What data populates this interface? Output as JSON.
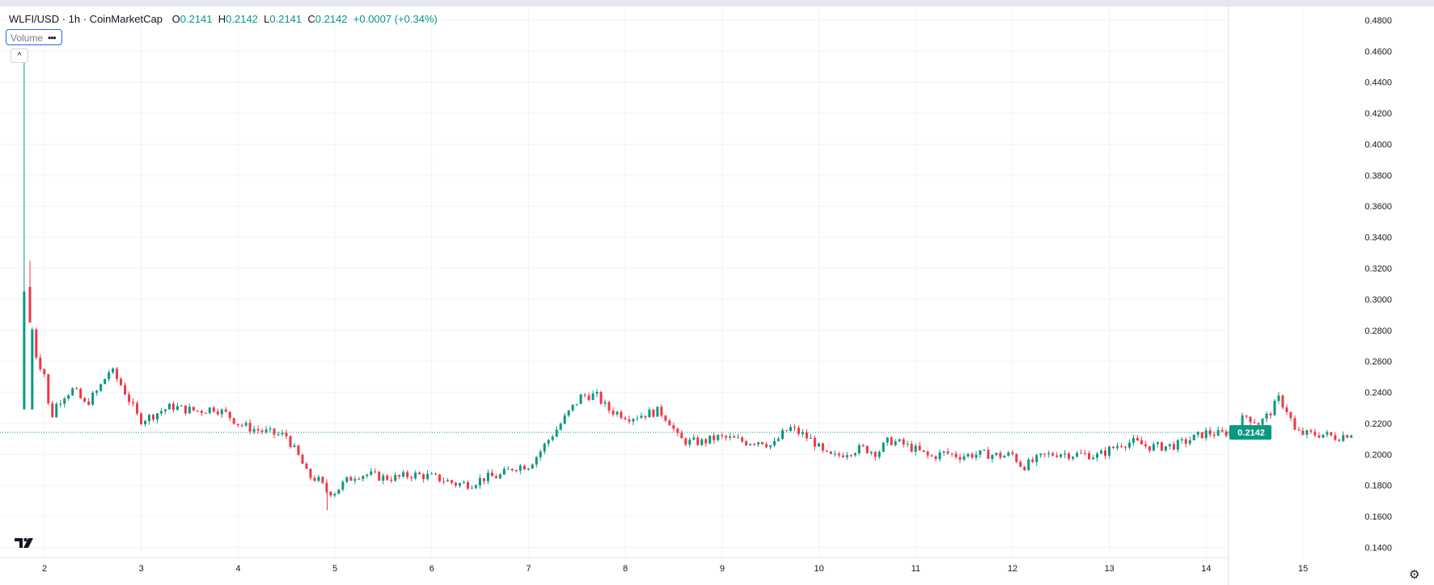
{
  "legend": {
    "symbol": "WLFI/USD · 1h · CoinMarketCap",
    "open_label": "O",
    "open": "0.2141",
    "high_label": "H",
    "high": "0.2142",
    "low_label": "L",
    "low": "0.2141",
    "close_label": "C",
    "close": "0.2142",
    "change": "+0.0007 (+0.34%)"
  },
  "volume_pill": {
    "label": "Volume",
    "more_icon": "ellipsis-icon"
  },
  "collapse_icon": "chevron-up-icon",
  "logo_icon": "tradingview-logo",
  "settings_icon": "gear-icon",
  "colors": {
    "up": "#089981",
    "down": "#f23645",
    "grid": "#f0f3fa",
    "axis_text": "#131722",
    "price_tag": "#089981"
  },
  "chart_data": {
    "type": "candlestick",
    "title": "WLFI/USD · 1h · CoinMarketCap",
    "xlabel": "",
    "ylabel": "",
    "ylim": [
      0.1335,
      0.4888
    ],
    "y_ticks": [
      "0.4800",
      "0.4600",
      "0.4400",
      "0.4200",
      "0.4000",
      "0.3800",
      "0.3600",
      "0.3400",
      "0.3200",
      "0.3000",
      "0.2800",
      "0.2600",
      "0.2400",
      "0.2200",
      "0.2000",
      "0.1800",
      "0.1600",
      "0.1400"
    ],
    "x_ticks": [
      "2",
      "3",
      "4",
      "5",
      "6",
      "7",
      "8",
      "9",
      "10",
      "11",
      "12",
      "13",
      "14",
      "15"
    ],
    "x_tick_day": [
      2,
      3,
      4,
      5,
      6,
      7,
      8,
      9,
      10,
      11,
      12,
      13,
      14,
      15
    ],
    "x_range_days": [
      1.56,
      16.0
    ],
    "last_price": "0.2142",
    "grid": true,
    "ohlc_path": {
      "note_days": "x in day-of-month units (fractional = hour of day)",
      "points": [
        [
          1.79,
          0.229
        ],
        [
          1.83,
          0.305
        ],
        [
          1.87,
          0.282
        ],
        [
          1.92,
          0.262
        ],
        [
          2.0,
          0.252
        ],
        [
          2.06,
          0.222
        ],
        [
          2.12,
          0.232
        ],
        [
          2.2,
          0.238
        ],
        [
          2.3,
          0.242
        ],
        [
          2.42,
          0.232
        ],
        [
          2.55,
          0.241
        ],
        [
          2.68,
          0.255
        ],
        [
          2.8,
          0.244
        ],
        [
          2.9,
          0.232
        ],
        [
          2.98,
          0.222
        ],
        [
          3.08,
          0.224
        ],
        [
          3.2,
          0.228
        ],
        [
          3.32,
          0.231
        ],
        [
          3.45,
          0.229
        ],
        [
          3.6,
          0.228
        ],
        [
          3.75,
          0.23
        ],
        [
          3.88,
          0.226
        ],
        [
          4.0,
          0.22
        ],
        [
          4.12,
          0.217
        ],
        [
          4.25,
          0.215
        ],
        [
          4.38,
          0.213
        ],
        [
          4.5,
          0.212
        ],
        [
          4.58,
          0.203
        ],
        [
          4.65,
          0.196
        ],
        [
          4.72,
          0.186
        ],
        [
          4.82,
          0.184
        ],
        [
          4.92,
          0.176
        ],
        [
          5.0,
          0.176
        ],
        [
          5.1,
          0.182
        ],
        [
          5.22,
          0.187
        ],
        [
          5.35,
          0.187
        ],
        [
          5.5,
          0.185
        ],
        [
          5.65,
          0.185
        ],
        [
          5.8,
          0.187
        ],
        [
          5.95,
          0.186
        ],
        [
          6.1,
          0.184
        ],
        [
          6.25,
          0.181
        ],
        [
          6.4,
          0.181
        ],
        [
          6.55,
          0.185
        ],
        [
          6.7,
          0.186
        ],
        [
          6.85,
          0.192
        ],
        [
          7.0,
          0.193
        ],
        [
          7.1,
          0.2
        ],
        [
          7.2,
          0.209
        ],
        [
          7.3,
          0.217
        ],
        [
          7.45,
          0.23
        ],
        [
          7.55,
          0.238
        ],
        [
          7.7,
          0.238
        ],
        [
          7.82,
          0.229
        ],
        [
          7.95,
          0.226
        ],
        [
          8.05,
          0.224
        ],
        [
          8.2,
          0.226
        ],
        [
          8.35,
          0.228
        ],
        [
          8.45,
          0.222
        ],
        [
          8.55,
          0.21
        ],
        [
          8.65,
          0.208
        ],
        [
          8.8,
          0.208
        ],
        [
          8.95,
          0.211
        ],
        [
          9.1,
          0.21
        ],
        [
          9.25,
          0.208
        ],
        [
          9.4,
          0.209
        ],
        [
          9.52,
          0.205
        ],
        [
          9.62,
          0.213
        ],
        [
          9.7,
          0.217
        ],
        [
          9.82,
          0.213
        ],
        [
          9.95,
          0.208
        ],
        [
          10.05,
          0.2
        ],
        [
          10.15,
          0.198
        ],
        [
          10.3,
          0.202
        ],
        [
          10.45,
          0.204
        ],
        [
          10.6,
          0.201
        ],
        [
          10.72,
          0.209
        ],
        [
          10.85,
          0.207
        ],
        [
          11.0,
          0.203
        ],
        [
          11.15,
          0.198
        ],
        [
          11.3,
          0.201
        ],
        [
          11.45,
          0.199
        ],
        [
          11.6,
          0.2
        ],
        [
          11.75,
          0.2
        ],
        [
          11.9,
          0.199
        ],
        [
          12.0,
          0.2
        ],
        [
          12.1,
          0.192
        ],
        [
          12.2,
          0.195
        ],
        [
          12.32,
          0.199
        ],
        [
          12.48,
          0.201
        ],
        [
          12.6,
          0.2
        ],
        [
          12.75,
          0.2
        ],
        [
          12.88,
          0.199
        ],
        [
          13.0,
          0.203
        ],
        [
          13.12,
          0.207
        ],
        [
          13.25,
          0.208
        ],
        [
          13.4,
          0.205
        ],
        [
          13.55,
          0.205
        ],
        [
          13.7,
          0.206
        ],
        [
          13.85,
          0.21
        ],
        [
          14.0,
          0.214
        ],
        [
          14.15,
          0.213
        ],
        [
          14.3,
          0.216
        ],
        [
          14.4,
          0.225
        ],
        [
          14.55,
          0.22
        ],
        [
          14.65,
          0.226
        ],
        [
          14.75,
          0.236
        ],
        [
          14.85,
          0.227
        ],
        [
          14.92,
          0.214
        ],
        [
          15.05,
          0.213
        ],
        [
          15.2,
          0.213
        ],
        [
          15.35,
          0.211
        ],
        [
          15.5,
          0.214
        ]
      ]
    },
    "spike": {
      "day": 1.79,
      "high": 0.461,
      "low": 0.229,
      "close": 0.305
    },
    "spike2": {
      "day": 1.85,
      "high": 0.325,
      "low": 0.285
    },
    "dip": {
      "day": 4.92,
      "low": 0.164
    }
  }
}
